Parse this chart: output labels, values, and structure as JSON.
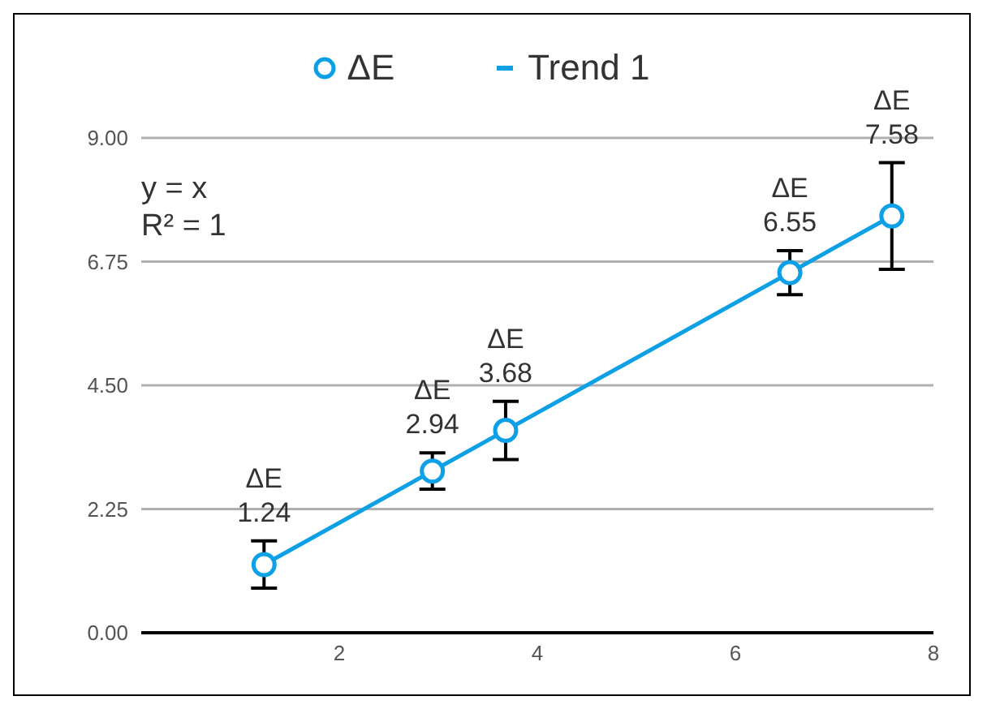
{
  "chart_data": {
    "type": "scatter",
    "series": [
      {
        "name": "ΔE",
        "color": "#0ea0e6",
        "marker": "circle",
        "x": [
          1.24,
          2.94,
          3.68,
          6.55,
          7.58
        ],
        "values": [
          1.24,
          2.94,
          3.68,
          6.55,
          7.58
        ],
        "errors": [
          0.43,
          0.33,
          0.53,
          0.4,
          0.97
        ],
        "value_labels": [
          "1.24",
          "2.94",
          "3.68",
          "6.55",
          "7.58"
        ]
      },
      {
        "name": "Trend 1",
        "type": "line",
        "color": "#0ea0e6",
        "marker": "none",
        "x": [
          1.24,
          7.58
        ],
        "values": [
          1.24,
          7.58
        ]
      }
    ],
    "xlim": [
      0,
      8
    ],
    "xticks": [
      2,
      4,
      6,
      8
    ],
    "ylim": [
      0,
      9
    ],
    "yticks": [
      {
        "value": 0,
        "label": "0.00"
      },
      {
        "value": 2.25,
        "label": "2.25"
      },
      {
        "value": 4.5,
        "label": "4.50"
      },
      {
        "value": 6.75,
        "label": "6.75"
      },
      {
        "value": 9,
        "label": "9.00"
      }
    ],
    "grid": "y",
    "legend": "top",
    "annotations": [
      "y = x",
      "R² = 1"
    ]
  }
}
